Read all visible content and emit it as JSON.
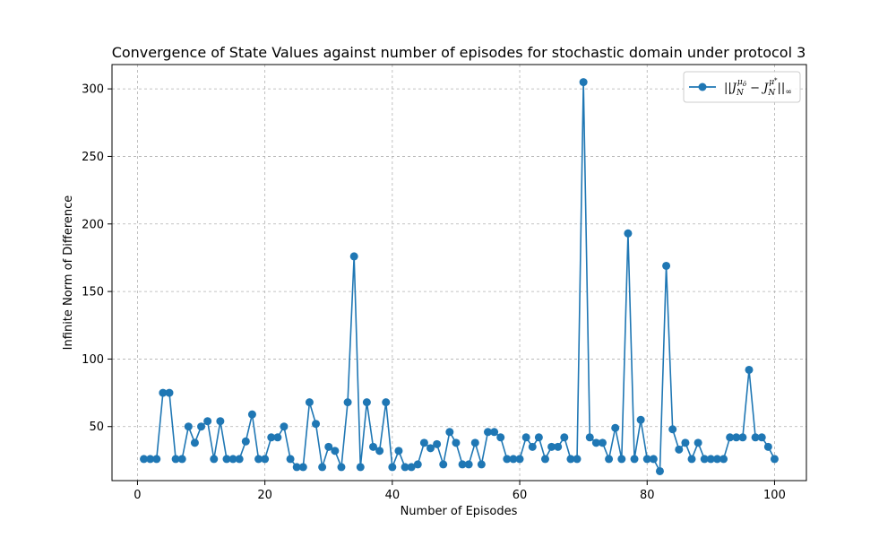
{
  "chart_data": {
    "type": "line",
    "title": "Convergence of State Values against number of episodes for stochastic domain under protocol 3",
    "xlabel": "Number of Episodes",
    "ylabel": "Infinite Norm of Difference",
    "xlim": [
      -4,
      105
    ],
    "ylim": [
      10,
      318
    ],
    "xticks": [
      0,
      20,
      40,
      60,
      80,
      100
    ],
    "yticks": [
      50,
      100,
      150,
      200,
      250,
      300
    ],
    "grid": true,
    "legend_position": "top-right",
    "color": "#1f77b4",
    "series": [
      {
        "name": "||J_N^{μ_ô} − J_N^{μ*}||_∞",
        "x": [
          1,
          2,
          3,
          4,
          5,
          6,
          7,
          8,
          9,
          10,
          11,
          12,
          13,
          14,
          15,
          16,
          17,
          18,
          19,
          20,
          21,
          22,
          23,
          24,
          25,
          26,
          27,
          28,
          29,
          30,
          31,
          32,
          33,
          34,
          35,
          36,
          37,
          38,
          39,
          40,
          41,
          42,
          43,
          44,
          45,
          46,
          47,
          48,
          49,
          50,
          51,
          52,
          53,
          54,
          55,
          56,
          57,
          58,
          59,
          60,
          61,
          62,
          63,
          64,
          65,
          66,
          67,
          68,
          69,
          70,
          71,
          72,
          73,
          74,
          75,
          76,
          77,
          78,
          79,
          80,
          81,
          82,
          83,
          84,
          85,
          86,
          87,
          88,
          89,
          90,
          91,
          92,
          93,
          94,
          95,
          96,
          97,
          98,
          99,
          100
        ],
        "values": [
          26,
          26,
          26,
          75,
          75,
          26,
          26,
          50,
          38,
          50,
          54,
          26,
          54,
          26,
          26,
          26,
          39,
          59,
          26,
          26,
          42,
          42,
          50,
          26,
          20,
          20,
          68,
          52,
          20,
          35,
          32,
          20,
          68,
          176,
          20,
          68,
          35,
          32,
          68,
          20,
          32,
          20,
          20,
          22,
          38,
          34,
          37,
          22,
          46,
          38,
          22,
          22,
          38,
          22,
          46,
          46,
          42,
          26,
          26,
          26,
          42,
          35,
          42,
          26,
          35,
          35,
          42,
          26,
          26,
          305,
          42,
          38,
          38,
          26,
          49,
          26,
          193,
          26,
          55,
          26,
          26,
          17,
          169,
          48,
          33,
          38,
          26,
          38,
          26,
          26,
          26,
          26,
          42,
          42,
          42,
          92,
          42,
          42,
          35,
          26
        ]
      }
    ],
    "legend": {
      "main": "||J",
      "sub1": "N",
      "sup1": "μ",
      "supsub1": "ô",
      "minus": " − J",
      "sub2": "N",
      "sup2": "μ",
      "supsup2": "*",
      "tail": "||",
      "inf": "∞"
    }
  }
}
